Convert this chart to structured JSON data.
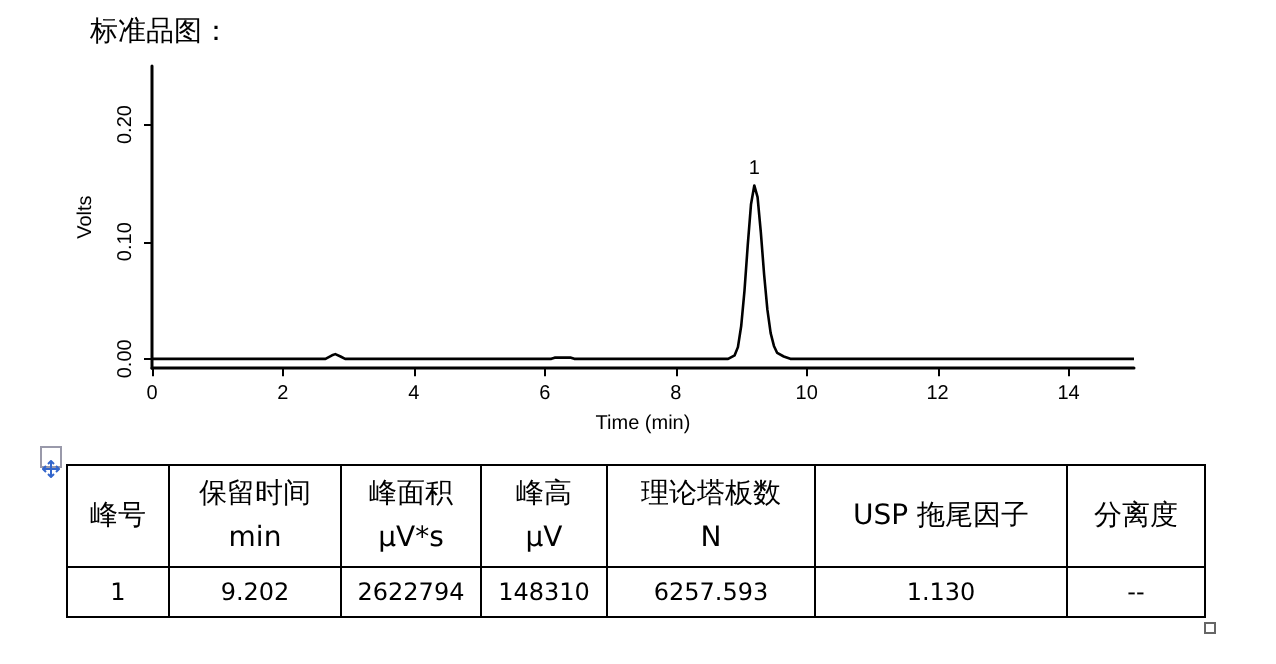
{
  "chart_data": {
    "type": "line",
    "title": "标准品图：",
    "xlabel": "Time (min)",
    "ylabel": "Volts",
    "x": [
      0,
      1.78,
      2.65,
      2.75,
      2.8,
      2.88,
      2.95,
      6.1,
      6.15,
      6.4,
      6.45,
      8.8,
      8.9,
      8.95,
      9.0,
      9.05,
      9.1,
      9.15,
      9.2,
      9.25,
      9.3,
      9.35,
      9.4,
      9.45,
      9.5,
      9.55,
      9.65,
      9.75,
      15
    ],
    "series": [
      {
        "color": "#000000",
        "values": [
          0,
          0,
          0,
          0.003,
          0.004,
          0.002,
          0,
          0,
          0.001,
          0.001,
          0,
          0,
          0.003,
          0.01,
          0.028,
          0.058,
          0.097,
          0.132,
          0.148,
          0.138,
          0.108,
          0.072,
          0.042,
          0.022,
          0.011,
          0.005,
          0.002,
          0,
          0
        ]
      }
    ],
    "xlim": [
      0,
      15
    ],
    "xticks": [
      0,
      2,
      4,
      6,
      8,
      10,
      12,
      14
    ],
    "ylim": [
      -0.008,
      0.25
    ],
    "yticks": [
      {
        "value": 0,
        "label": "0.00"
      },
      {
        "value": 0.1,
        "label": "0.10"
      },
      {
        "value": 0.2,
        "label": "0.20"
      }
    ],
    "grid": false,
    "line_style": "solid",
    "annotations": [
      {
        "text": "1",
        "x": 9.2,
        "y": 0.148
      },
      "峰号",
      "保留时间\nmin",
      "峰面积\nμV*s",
      "峰高\nμV",
      "理论塔板数\nN",
      "USP 拖尾因子",
      "分离度",
      "1",
      "9.202",
      "2622794",
      "148310",
      "6257.593",
      "1.130",
      "--"
    ]
  }
}
